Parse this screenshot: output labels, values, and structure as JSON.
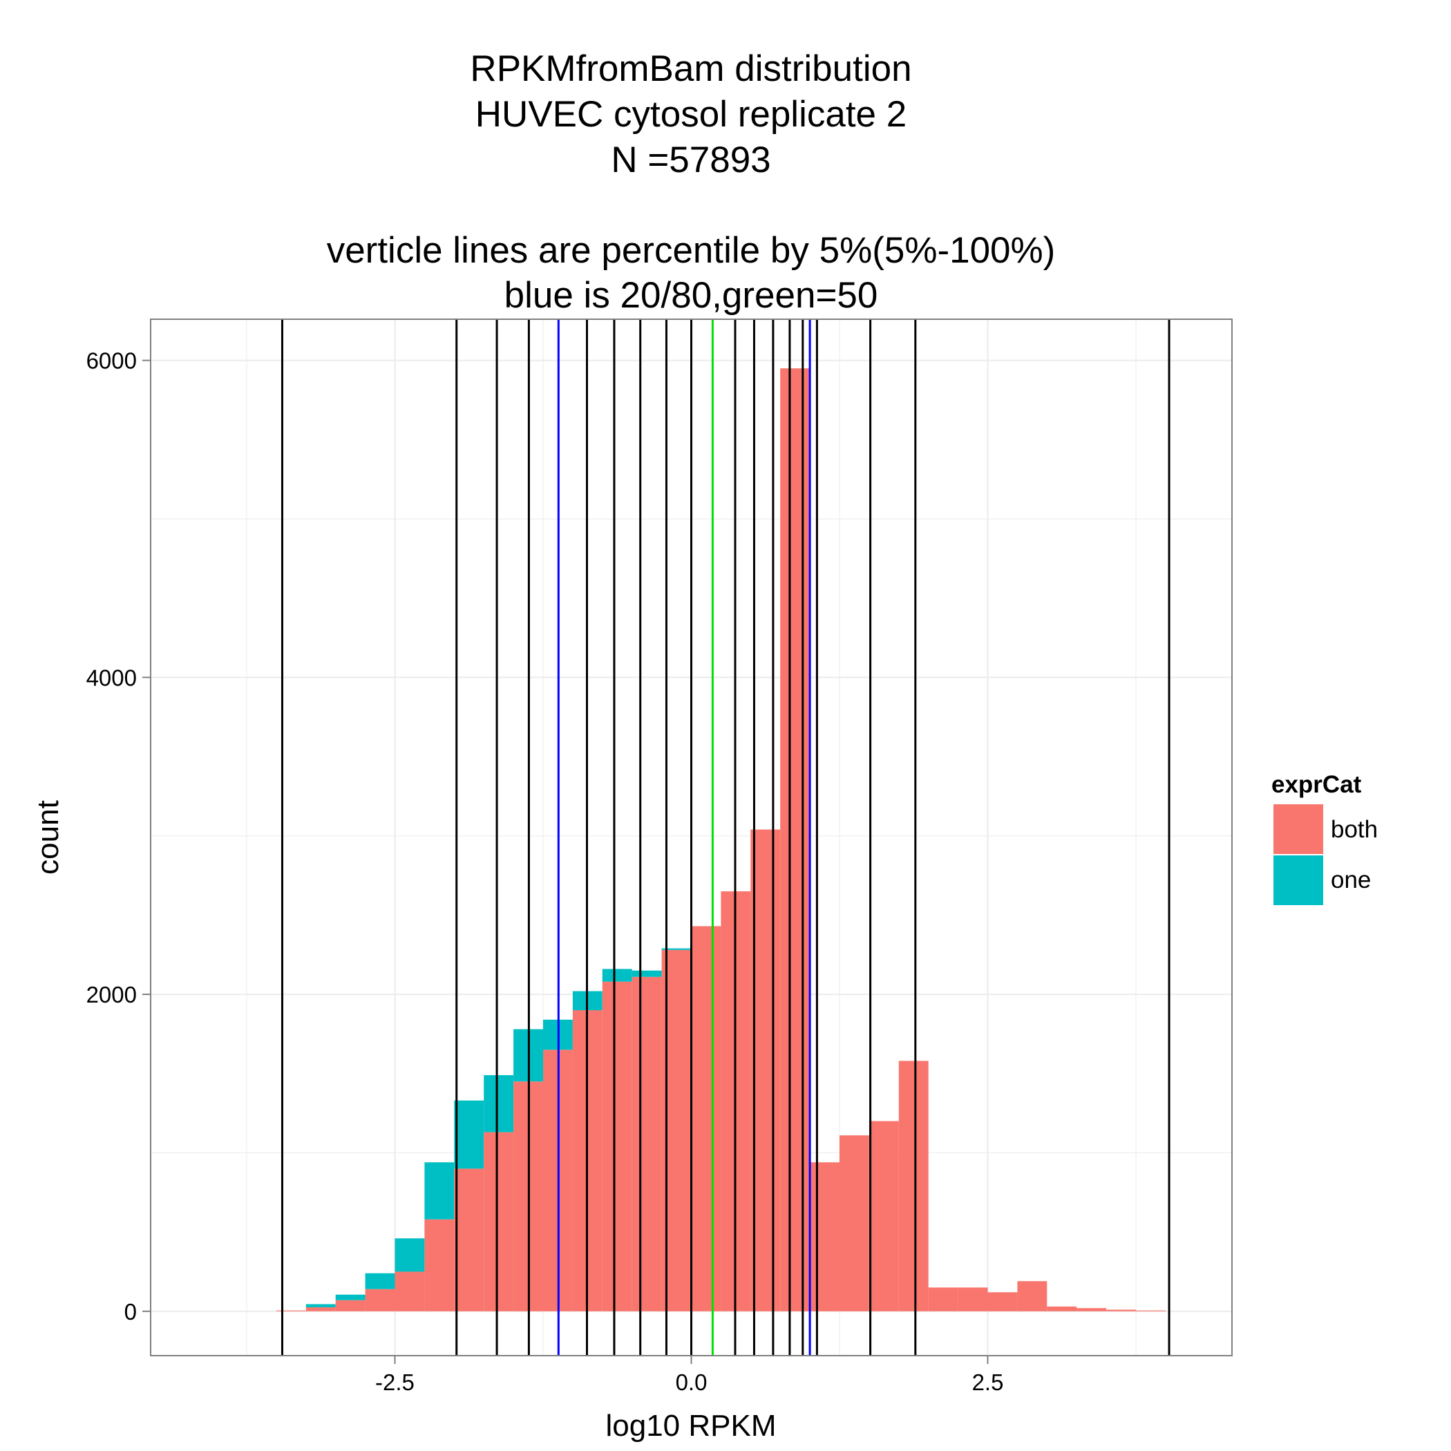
{
  "chart_data": {
    "type": "bar",
    "subtype": "stacked-histogram",
    "title_lines": [
      "RPKMfromBam distribution",
      "HUVEC cytosol replicate 2",
      "N =57893",
      "",
      "verticle lines are percentile by 5%(5%-100%)",
      "blue is 20/80,green=50"
    ],
    "xlabel": "log10 RPKM",
    "ylabel": "count",
    "xlim": [
      -4.56,
      4.56
    ],
    "ylim": [
      -280,
      6260
    ],
    "xticks": [
      -2.5,
      0.0,
      2.5
    ],
    "xtick_labels": [
      "-2.5",
      "0.0",
      "2.5"
    ],
    "yticks": [
      0,
      2000,
      4000,
      6000
    ],
    "ytick_labels": [
      "0",
      "2000",
      "4000",
      "6000"
    ],
    "grid": true,
    "background": "#ffffff",
    "grid_color": "#ebebeb",
    "legend": {
      "title": "exprCat",
      "position": "right",
      "entries": [
        {
          "label": "both",
          "color": "#F8766D"
        },
        {
          "label": "one",
          "color": "#00BFC4"
        }
      ]
    },
    "bins": {
      "centers": [
        -3.375,
        -3.125,
        -2.875,
        -2.625,
        -2.375,
        -2.125,
        -1.875,
        -1.625,
        -1.375,
        -1.125,
        -0.875,
        -0.625,
        -0.375,
        -0.125,
        0.125,
        0.375,
        0.625,
        0.875,
        1.125,
        1.375,
        1.625,
        1.875,
        2.125,
        2.375,
        2.625,
        2.875,
        3.125,
        3.375,
        3.625,
        3.875
      ],
      "width": 0.25
    },
    "series": [
      {
        "name": "both",
        "color": "#F8766D",
        "values": [
          5,
          25,
          70,
          140,
          250,
          580,
          900,
          1130,
          1450,
          1650,
          1900,
          2080,
          2110,
          2280,
          2430,
          2650,
          3040,
          5950,
          940,
          1110,
          1200,
          1580,
          150,
          150,
          120,
          190,
          30,
          20,
          10,
          5
        ]
      },
      {
        "name": "one",
        "color": "#00BFC4",
        "values": [
          0,
          20,
          35,
          100,
          210,
          360,
          430,
          360,
          330,
          190,
          120,
          80,
          40,
          10,
          0,
          0,
          0,
          0,
          0,
          0,
          0,
          0,
          0,
          0,
          0,
          0,
          0,
          0,
          0,
          0
        ]
      }
    ],
    "vlines": [
      {
        "x": -3.45,
        "color": "#000000"
      },
      {
        "x": -1.98,
        "color": "#000000"
      },
      {
        "x": -1.64,
        "color": "#000000"
      },
      {
        "x": -1.37,
        "color": "#000000"
      },
      {
        "x": -1.12,
        "color": "#0000ff"
      },
      {
        "x": -0.88,
        "color": "#000000"
      },
      {
        "x": -0.65,
        "color": "#000000"
      },
      {
        "x": -0.43,
        "color": "#000000"
      },
      {
        "x": -0.21,
        "color": "#000000"
      },
      {
        "x": 0.0,
        "color": "#000000"
      },
      {
        "x": 0.18,
        "color": "#00e000"
      },
      {
        "x": 0.37,
        "color": "#000000"
      },
      {
        "x": 0.53,
        "color": "#000000"
      },
      {
        "x": 0.69,
        "color": "#000000"
      },
      {
        "x": 0.83,
        "color": "#000000"
      },
      {
        "x": 0.94,
        "color": "#000000"
      },
      {
        "x": 1.0,
        "color": "#0000ff"
      },
      {
        "x": 1.06,
        "color": "#000000"
      },
      {
        "x": 1.51,
        "color": "#000000"
      },
      {
        "x": 1.89,
        "color": "#000000"
      },
      {
        "x": 4.03,
        "color": "#000000"
      }
    ]
  }
}
